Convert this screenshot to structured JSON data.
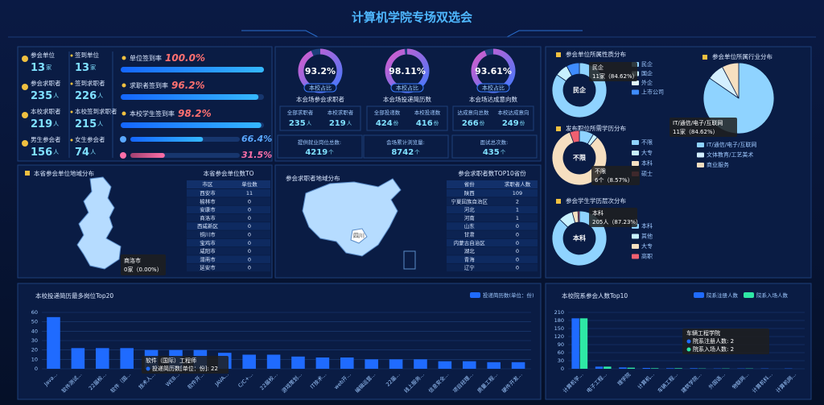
{
  "header": {
    "title": "计算机学院专场双选会"
  },
  "stats": [
    {
      "label": "参会单位",
      "value": 13,
      "unit": "家"
    },
    {
      "label": "签到单位",
      "value": 13,
      "unit": "家"
    },
    {
      "label": "参会求职者",
      "value": 235,
      "unit": "人"
    },
    {
      "label": "签到求职者",
      "value": 226,
      "unit": "人"
    },
    {
      "label": "本校求职者",
      "value": 219,
      "unit": "人"
    },
    {
      "label": "本校签到求职者",
      "value": 215,
      "unit": "人"
    },
    {
      "label": "男生参会者",
      "value": 156,
      "unit": "人"
    },
    {
      "label": "女生参会者",
      "value": 74,
      "unit": "人"
    }
  ],
  "rates": [
    {
      "label": "单位签到率",
      "value": 100.0,
      "value_label": "100.0%"
    },
    {
      "label": "求职者签到率",
      "value": 96.2,
      "value_label": "96.2%"
    },
    {
      "label": "本校学生签到率",
      "value": 98.2,
      "value_label": "98.2%"
    },
    {
      "value": 66.4,
      "value_label": "66.4%"
    },
    {
      "value": 31.5,
      "value_label": "31.5%"
    }
  ],
  "gauges": [
    {
      "value": 93.2,
      "value_label": "93.2%",
      "tag": "本校占比",
      "title": "本会场参会求职者",
      "items": [
        {
          "label": "全部求职者",
          "value": 235,
          "unit": "人"
        },
        {
          "label": "本校求职者",
          "value": 219,
          "unit": "人"
        }
      ]
    },
    {
      "value": 98.11,
      "value_label": "98.11%",
      "tag": "本校占比",
      "title": "本会场投递简历数",
      "items": [
        {
          "label": "全部投递数",
          "value": 424,
          "unit": "份"
        },
        {
          "label": "本校投递数",
          "value": 416,
          "unit": "份"
        }
      ]
    },
    {
      "value": 93.61,
      "value_label": "93.61%",
      "tag": "本校占比",
      "title": "本会场达成意向数",
      "items": [
        {
          "label": "达成意向总数",
          "value": 266,
          "unit": "份"
        },
        {
          "label": "本校达成意向",
          "value": 249,
          "unit": "份"
        }
      ]
    }
  ],
  "totals": [
    {
      "label": "提供就业岗位总数:",
      "value": 4219,
      "unit": "个"
    },
    {
      "label": "会场累计浏览量:",
      "value": 8742,
      "unit": "个"
    },
    {
      "label": "面试总次数:",
      "value": 435,
      "unit": "个"
    }
  ],
  "province_map": {
    "title": "本省参会单位地域分布",
    "table_title": "本省参会单位数TO",
    "headers": [
      "市区",
      "单位数"
    ],
    "rows": [
      [
        "西安市",
        11
      ],
      [
        "榆林市",
        0
      ],
      [
        "安康市",
        0
      ],
      [
        "商洛市",
        0
      ],
      [
        "西咸新区",
        0
      ],
      [
        "铜川市",
        0
      ],
      [
        "宝鸡市",
        0
      ],
      [
        "咸阳市",
        0
      ],
      [
        "渭南市",
        0
      ],
      [
        "延安市",
        0
      ]
    ],
    "tooltip": {
      "name": "商洛市",
      "text": "0家（0.00%）"
    }
  },
  "country_map": {
    "title": "参会求职者地域分布",
    "table_title": "参会求职者数TOP10省份",
    "headers": [
      "省份",
      "求职者人数"
    ],
    "rows": [
      [
        "陕西",
        109
      ],
      [
        "宁夏回族自治区",
        2
      ],
      [
        "河北",
        1
      ],
      [
        "河南",
        1
      ],
      [
        "山东",
        0
      ],
      [
        "甘肃",
        0
      ],
      [
        "内蒙古自治区",
        0
      ],
      [
        "湖北",
        0
      ],
      [
        "青海",
        0
      ],
      [
        "辽宁",
        0
      ]
    ],
    "tooltip": "四川"
  },
  "chart_data": [
    {
      "type": "pie",
      "title": "参会单位所属性质分布",
      "donut": true,
      "categories": [
        "民企",
        "国企",
        "外企",
        "上市公司"
      ],
      "values": [
        11,
        1,
        0,
        1
      ],
      "colors": [
        "#8fd3ff",
        "#c8f1ff",
        "#e0f7ff",
        "#3f8cff"
      ],
      "center_label": "民企",
      "tooltip": {
        "name": "民企",
        "text": "11家（84.62%）"
      }
    },
    {
      "type": "pie",
      "title": "发布职位所需学历分布",
      "donut": true,
      "categories": [
        "不限",
        "大专",
        "本科",
        "硕士"
      ],
      "values": [
        6,
        2,
        58,
        4
      ],
      "colors": [
        "#8fd3ff",
        "#c8f1ff",
        "#f6dfc0",
        "#f06070"
      ],
      "center_label": "不限",
      "tooltip": {
        "name": "不限",
        "text": "6个（8.57%）"
      }
    },
    {
      "type": "pie",
      "title": "参会学生学历层次分布",
      "donut": true,
      "categories": [
        "本科",
        "其他",
        "大专",
        "高职"
      ],
      "values": [
        205,
        20,
        8,
        2
      ],
      "colors": [
        "#8fd3ff",
        "#c8f1ff",
        "#f6dfc0",
        "#f06070"
      ],
      "center_label": "本科",
      "tooltip": {
        "name": "本科",
        "text": "205人（87.23%）"
      }
    },
    {
      "type": "pie",
      "title": "参会单位所属行业分布",
      "donut": false,
      "categories": [
        "IT/通信/电子/互联网",
        "文体教育/工艺美术",
        "商业服务"
      ],
      "values": [
        11,
        1,
        1
      ],
      "colors": [
        "#8fd3ff",
        "#d4efff",
        "#f6dfc0"
      ],
      "tooltip": {
        "name": "IT/通信/电子/互联网",
        "text": "11家（84.62%）"
      }
    },
    {
      "type": "bar",
      "title": "本校投递简历最多岗位Top20",
      "categories": [
        "Java...",
        "软件测试...",
        "22届校...",
        "软件（国...",
        "技术人...",
        "WEB...",
        "软件开...",
        "JAVA...",
        "C/C+...",
        "22届校...",
        "游戏策划...",
        "IT技术...",
        "web开...",
        "编辑运营...",
        "22届...",
        "线上服务...",
        "信息安全...",
        "项目经理...",
        "质量工程...",
        "硬件开发..."
      ],
      "series": [
        {
          "name": "投递简历数(单位：份)",
          "color": "#1f6bff",
          "values": [
            55,
            22,
            22,
            22,
            20,
            20,
            20,
            17,
            15,
            15,
            13,
            12,
            12,
            10,
            10,
            10,
            8,
            8,
            7,
            7
          ]
        }
      ],
      "ylim": [
        0,
        60
      ],
      "yticks": [
        0,
        10,
        20,
        30,
        40,
        50,
        60
      ],
      "grid": true,
      "tooltip": {
        "title": "软件（国际）工程师",
        "lines": [
          "投递简历数[单位：份]: 22"
        ]
      }
    },
    {
      "type": "bar",
      "title": "本校院系参会人数Top10",
      "categories": [
        "计算机学...",
        "电子工程...",
        "理学院",
        "计算机...",
        "车辆工程...",
        "建筑学院...",
        "外国语...",
        "物联网...",
        "计算机科...",
        "计算机网..."
      ],
      "series": [
        {
          "name": "院系注册人数",
          "color": "#1f6bff",
          "values": [
            188,
            8,
            5,
            3,
            2,
            2,
            1,
            1,
            1,
            1
          ]
        },
        {
          "name": "院系入场人数",
          "color": "#2ee8a5",
          "values": [
            188,
            8,
            4,
            2,
            2,
            1,
            1,
            1,
            0,
            0
          ]
        }
      ],
      "ylim": [
        0,
        210
      ],
      "yticks": [
        0,
        30,
        60,
        90,
        120,
        150,
        180,
        210
      ],
      "grid": true,
      "tooltip": {
        "title": "车辆工程学院",
        "lines": [
          "院系注册人数: 2",
          "院系入场人数: 2"
        ]
      }
    }
  ]
}
